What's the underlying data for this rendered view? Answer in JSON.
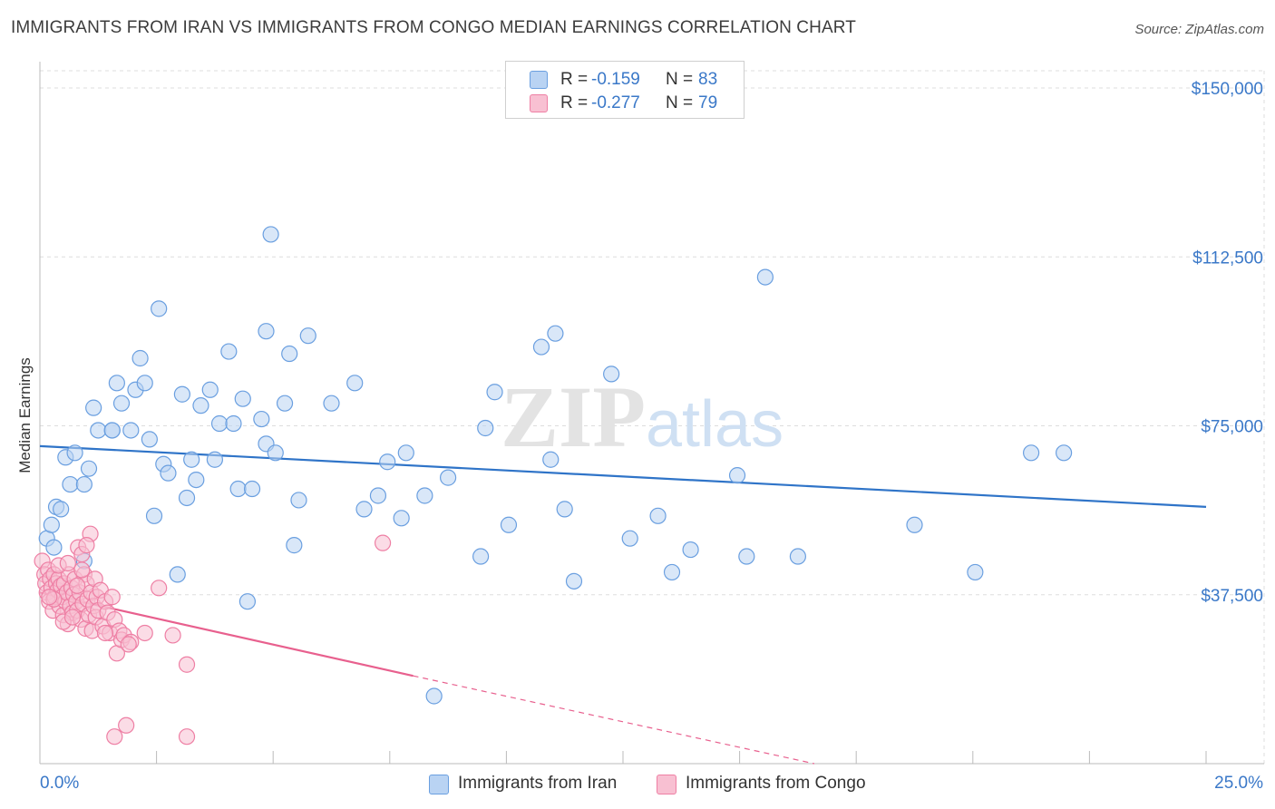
{
  "title": "IMMIGRANTS FROM IRAN VS IMMIGRANTS FROM CONGO MEDIAN EARNINGS CORRELATION CHART",
  "source": "Source: ZipAtlas.com",
  "legend": {
    "rows": [
      {
        "r_label": "R =",
        "r_value": "-0.159",
        "n_label": "N =",
        "n_value": "83"
      },
      {
        "r_label": "R =",
        "r_value": "-0.277",
        "n_label": "N =",
        "n_value": "79"
      }
    ]
  },
  "bottom_legend": [
    "Immigrants from Iran",
    "Immigrants from Congo"
  ],
  "colors": {
    "iran_fill": "#b9d3f3",
    "iran_stroke": "#6a9fe0",
    "iran_line": "#2f74c8",
    "congo_fill": "#f8c0d2",
    "congo_stroke": "#ee7fa4",
    "congo_line": "#e8608e",
    "tick_label": "#3a78c8",
    "grid": "#dddddd"
  },
  "chart_data": {
    "type": "scatter",
    "title": "IMMIGRANTS FROM IRAN VS IMMIGRANTS FROM CONGO MEDIAN EARNINGS CORRELATION CHART",
    "xlabel": "",
    "ylabel": "Median Earnings",
    "xlim": [
      0,
      25
    ],
    "ylim": [
      0,
      152000
    ],
    "x_tick_labels": [
      "0.0%",
      "25.0%"
    ],
    "y_ticks": [
      37500,
      75000,
      112500,
      150000
    ],
    "y_tick_labels": [
      "$37,500",
      "$75,000",
      "$112,500",
      "$150,000"
    ],
    "grid": true,
    "watermark": "ZIPatlas",
    "series": [
      {
        "name": "Immigrants from Iran",
        "R": -0.159,
        "N": 83,
        "trend": {
          "x": [
            0,
            25
          ],
          "y": [
            70500,
            57000
          ],
          "dashed_from": null
        },
        "points": [
          [
            0.15,
            50000
          ],
          [
            0.25,
            53000
          ],
          [
            0.35,
            57000
          ],
          [
            0.45,
            56500
          ],
          [
            0.55,
            68000
          ],
          [
            0.75,
            69000
          ],
          [
            0.65,
            62000
          ],
          [
            0.95,
            62000
          ],
          [
            1.05,
            65500
          ],
          [
            1.15,
            79000
          ],
          [
            1.25,
            74000
          ],
          [
            0.95,
            45000
          ],
          [
            1.55,
            74000
          ],
          [
            1.55,
            74000
          ],
          [
            1.75,
            80000
          ],
          [
            1.95,
            74000
          ],
          [
            1.65,
            84500
          ],
          [
            2.05,
            83000
          ],
          [
            2.15,
            90000
          ],
          [
            2.25,
            84500
          ],
          [
            2.35,
            72000
          ],
          [
            2.45,
            55000
          ],
          [
            2.55,
            101000
          ],
          [
            2.65,
            66500
          ],
          [
            2.75,
            64500
          ],
          [
            2.95,
            42000
          ],
          [
            3.05,
            82000
          ],
          [
            3.15,
            59000
          ],
          [
            3.25,
            67500
          ],
          [
            3.35,
            63000
          ],
          [
            3.45,
            79500
          ],
          [
            3.65,
            83000
          ],
          [
            3.75,
            67500
          ],
          [
            3.85,
            75500
          ],
          [
            4.05,
            91500
          ],
          [
            4.15,
            75500
          ],
          [
            4.25,
            61000
          ],
          [
            4.35,
            81000
          ],
          [
            4.45,
            36000
          ],
          [
            4.55,
            61000
          ],
          [
            4.75,
            76500
          ],
          [
            4.85,
            71000
          ],
          [
            5.05,
            69000
          ],
          [
            5.25,
            80000
          ],
          [
            5.35,
            91000
          ],
          [
            5.45,
            48500
          ],
          [
            5.55,
            58500
          ],
          [
            5.75,
            95000
          ],
          [
            4.85,
            96000
          ],
          [
            4.95,
            117500
          ],
          [
            6.25,
            80000
          ],
          [
            6.75,
            84500
          ],
          [
            6.95,
            56500
          ],
          [
            7.25,
            59500
          ],
          [
            7.45,
            67000
          ],
          [
            7.75,
            54500
          ],
          [
            7.85,
            69000
          ],
          [
            8.25,
            59500
          ],
          [
            8.45,
            15000
          ],
          [
            8.75,
            63500
          ],
          [
            9.45,
            46000
          ],
          [
            9.55,
            74500
          ],
          [
            9.75,
            82500
          ],
          [
            10.05,
            53000
          ],
          [
            10.95,
            67500
          ],
          [
            10.75,
            92500
          ],
          [
            11.05,
            95500
          ],
          [
            11.25,
            56500
          ],
          [
            11.45,
            40500
          ],
          [
            12.25,
            86500
          ],
          [
            12.65,
            50000
          ],
          [
            13.25,
            55000
          ],
          [
            13.55,
            42500
          ],
          [
            13.95,
            47500
          ],
          [
            14.95,
            64000
          ],
          [
            15.15,
            46000
          ],
          [
            15.55,
            108000
          ],
          [
            16.25,
            46000
          ],
          [
            18.75,
            53000
          ],
          [
            20.05,
            42500
          ],
          [
            21.25,
            69000
          ],
          [
            21.95,
            69000
          ],
          [
            0.3,
            48000
          ]
        ]
      },
      {
        "name": "Immigrants from Congo",
        "R": -0.277,
        "N": 79,
        "trend": {
          "x": [
            0,
            8
          ],
          "y": [
            38000,
            19500
          ],
          "dashed_to": [
            16.6,
            0
          ]
        },
        "points": [
          [
            0.05,
            45000
          ],
          [
            0.1,
            42000
          ],
          [
            0.12,
            40000
          ],
          [
            0.15,
            38000
          ],
          [
            0.18,
            43000
          ],
          [
            0.2,
            36000
          ],
          [
            0.22,
            41000
          ],
          [
            0.25,
            39000
          ],
          [
            0.28,
            34000
          ],
          [
            0.3,
            42000
          ],
          [
            0.32,
            37000
          ],
          [
            0.35,
            40000
          ],
          [
            0.38,
            38500
          ],
          [
            0.4,
            41000
          ],
          [
            0.42,
            35000
          ],
          [
            0.45,
            39500
          ],
          [
            0.48,
            37000
          ],
          [
            0.5,
            33000
          ],
          [
            0.52,
            40000
          ],
          [
            0.55,
            36000
          ],
          [
            0.58,
            38000
          ],
          [
            0.6,
            31000
          ],
          [
            0.62,
            42000
          ],
          [
            0.65,
            35000
          ],
          [
            0.68,
            39000
          ],
          [
            0.7,
            33500
          ],
          [
            0.72,
            37500
          ],
          [
            0.75,
            41000
          ],
          [
            0.78,
            36000
          ],
          [
            0.8,
            34000
          ],
          [
            0.82,
            48000
          ],
          [
            0.85,
            38000
          ],
          [
            0.88,
            32000
          ],
          [
            0.9,
            46500
          ],
          [
            0.92,
            35500
          ],
          [
            0.95,
            42000
          ],
          [
            0.98,
            30000
          ],
          [
            1.0,
            40000
          ],
          [
            1.02,
            36500
          ],
          [
            1.05,
            33000
          ],
          [
            1.08,
            51000
          ],
          [
            1.1,
            38000
          ],
          [
            1.12,
            29500
          ],
          [
            1.15,
            35000
          ],
          [
            1.18,
            41000
          ],
          [
            1.2,
            32500
          ],
          [
            1.22,
            37000
          ],
          [
            1.25,
            34000
          ],
          [
            1.3,
            38500
          ],
          [
            1.35,
            30500
          ],
          [
            1.4,
            36000
          ],
          [
            1.45,
            33500
          ],
          [
            1.5,
            29000
          ],
          [
            1.55,
            37000
          ],
          [
            1.6,
            32000
          ],
          [
            1.65,
            24500
          ],
          [
            1.7,
            29500
          ],
          [
            1.75,
            27500
          ],
          [
            1.8,
            28500
          ],
          [
            1.85,
            8500
          ],
          [
            1.95,
            27000
          ],
          [
            1.6,
            6000
          ],
          [
            2.25,
            29000
          ],
          [
            2.55,
            39000
          ],
          [
            2.85,
            28500
          ],
          [
            3.15,
            22000
          ],
          [
            3.15,
            6000
          ],
          [
            7.35,
            49000
          ],
          [
            0.4,
            44000
          ],
          [
            0.6,
            44500
          ],
          [
            0.9,
            43000
          ],
          [
            1.0,
            48500
          ],
          [
            0.3,
            36500
          ],
          [
            0.5,
            31500
          ],
          [
            0.7,
            32500
          ],
          [
            1.4,
            29000
          ],
          [
            1.9,
            26500
          ],
          [
            0.2,
            37000
          ],
          [
            0.8,
            39500
          ]
        ]
      }
    ]
  }
}
